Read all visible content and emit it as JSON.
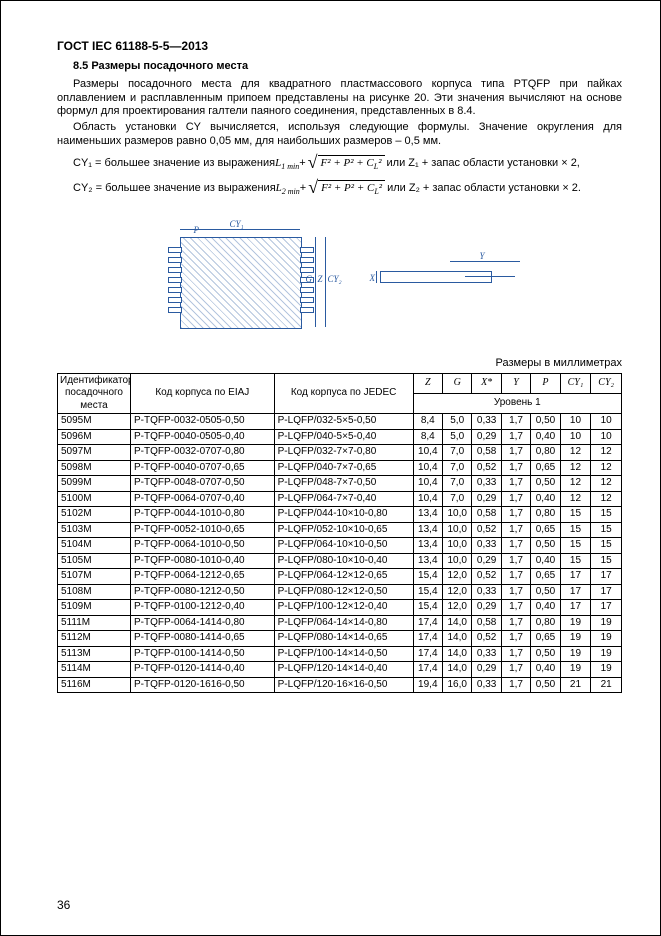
{
  "header": "ГОСТ IEC 61188-5-5—2013",
  "section_title": "8.5 Размеры посадочного места",
  "p1": "Размеры посадочного места для квадратного пластмассового корпуса типа PTQFP при пайках оплавлением и расплавленным припоем представлены на рисунке 20. Эти значения вычисляют на основе формул для проектирования галтели паяного соединения, представленных в 8.4.",
  "p2": "Область установки CY вычисляется, используя следующие формулы. Значение округления для наименьших размеров равно 0,05 мм, для наибольших размеров – 0,5 мм.",
  "f1_pre": "CY₁ = большее значение из выражения ",
  "f1_L": "L",
  "f1_Lsub": "1 min",
  "f1_plus": " + ",
  "f1_sqrt": "F² + P² + C",
  "f1_sqrt_sub": "L",
  "f1_sqrt_tail": "²",
  "f1_post": " или Z₁ + запас области установки × 2,",
  "f2_pre": "CY₂ = большее значение из выражения ",
  "f2_Lsub": "2 min",
  "f2_post": " или Z₂ + запас области установки × 2.",
  "diag": {
    "cy1": "CY₁",
    "p": "P",
    "g": "G",
    "z": "Z",
    "cy2": "CY₂",
    "y": "Y",
    "x": "X"
  },
  "units_caption": "Размеры в миллиметрах",
  "table": {
    "head": {
      "id": "Идентификатор посадочного места",
      "eiaj": "Код корпуса по EIAJ",
      "jedec": "Код корпуса по JEDEC",
      "z": "Z",
      "g": "G",
      "x": "X*",
      "y": "Y",
      "p": "P",
      "cy1": "CY₁",
      "cy2": "CY₂",
      "level": "Уровень 1"
    },
    "rows": [
      [
        "5095M",
        "P-TQFP-0032-0505-0,50",
        "P-LQFP/032-5×5-0,50",
        "8,4",
        "5,0",
        "0,33",
        "1,7",
        "0,50",
        "10",
        "10"
      ],
      [
        "5096M",
        "P-TQFP-0040-0505-0,40",
        "P-LQFP/040-5×5-0,40",
        "8,4",
        "5,0",
        "0,29",
        "1,7",
        "0,40",
        "10",
        "10"
      ],
      [
        "5097M",
        "P-TQFP-0032-0707-0,80",
        "P-LQFP/032-7×7-0,80",
        "10,4",
        "7,0",
        "0,58",
        "1,7",
        "0,80",
        "12",
        "12"
      ],
      [
        "5098M",
        "P-TQFP-0040-0707-0,65",
        "P-LQFP/040-7×7-0,65",
        "10,4",
        "7,0",
        "0,52",
        "1,7",
        "0,65",
        "12",
        "12"
      ],
      [
        "5099M",
        "P-TQFP-0048-0707-0,50",
        "P-LQFP/048-7×7-0,50",
        "10,4",
        "7,0",
        "0,33",
        "1,7",
        "0,50",
        "12",
        "12"
      ],
      [
        "5100M",
        "P-TQFP-0064-0707-0,40",
        "P-LQFP/064-7×7-0,40",
        "10,4",
        "7,0",
        "0,29",
        "1,7",
        "0,40",
        "12",
        "12"
      ],
      [
        "5102M",
        "P-TQFP-0044-1010-0,80",
        "P-LQFP/044-10×10-0,80",
        "13,4",
        "10,0",
        "0,58",
        "1,7",
        "0,80",
        "15",
        "15"
      ],
      [
        "5103M",
        "P-TQFP-0052-1010-0,65",
        "P-LQFP/052-10×10-0,65",
        "13,4",
        "10,0",
        "0,52",
        "1,7",
        "0,65",
        "15",
        "15"
      ],
      [
        "5104M",
        "P-TQFP-0064-1010-0,50",
        "P-LQFP/064-10×10-0,50",
        "13,4",
        "10,0",
        "0,33",
        "1,7",
        "0,50",
        "15",
        "15"
      ],
      [
        "5105M",
        "P-TQFP-0080-1010-0,40",
        "P-LQFP/080-10×10-0,40",
        "13,4",
        "10,0",
        "0,29",
        "1,7",
        "0,40",
        "15",
        "15"
      ],
      [
        "5107M",
        "P-TQFP-0064-1212-0,65",
        "P-LQFP/064-12×12-0,65",
        "15,4",
        "12,0",
        "0,52",
        "1,7",
        "0,65",
        "17",
        "17"
      ],
      [
        "5108M",
        "P-TQFP-0080-1212-0,50",
        "P-LQFP/080-12×12-0,50",
        "15,4",
        "12,0",
        "0,33",
        "1,7",
        "0,50",
        "17",
        "17"
      ],
      [
        "5109M",
        "P-TQFP-0100-1212-0,40",
        "P-LQFP/100-12×12-0,40",
        "15,4",
        "12,0",
        "0,29",
        "1,7",
        "0,40",
        "17",
        "17"
      ],
      [
        "5111M",
        "P-TQFP-0064-1414-0,80",
        "P-LQFP/064-14×14-0,80",
        "17,4",
        "14,0",
        "0,58",
        "1,7",
        "0,80",
        "19",
        "19"
      ],
      [
        "5112M",
        "P-TQFP-0080-1414-0,65",
        "P-LQFP/080-14×14-0,65",
        "17,4",
        "14,0",
        "0,52",
        "1,7",
        "0,65",
        "19",
        "19"
      ],
      [
        "5113M",
        "P-TQFP-0100-1414-0,50",
        "P-LQFP/100-14×14-0,50",
        "17,4",
        "14,0",
        "0,33",
        "1,7",
        "0,50",
        "19",
        "19"
      ],
      [
        "5114M",
        "P-TQFP-0120-1414-0,40",
        "P-LQFP/120-14×14-0,40",
        "17,4",
        "14,0",
        "0,29",
        "1,7",
        "0,40",
        "19",
        "19"
      ],
      [
        "5116M",
        "P-TQFP-0120-1616-0,50",
        "P-LQFP/120-16×16-0,50",
        "19,4",
        "16,0",
        "0,33",
        "1,7",
        "0,50",
        "21",
        "21"
      ]
    ]
  },
  "page_number": "36"
}
